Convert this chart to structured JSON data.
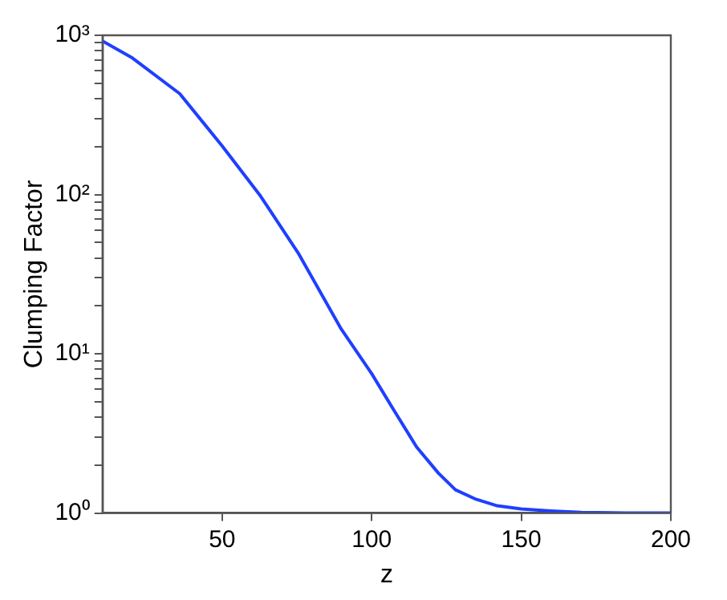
{
  "chart_data": {
    "type": "line",
    "xlabel": "z",
    "ylabel": "Clumping Factor",
    "log": "y",
    "grid": false,
    "legend": false,
    "marker": "none",
    "line_style": "solid",
    "x": [
      10,
      20,
      35.8,
      50,
      62.8,
      75.4,
      89.8,
      100,
      107.8,
      115,
      122.3,
      128,
      134.9,
      142,
      150,
      160,
      170,
      185,
      200
    ],
    "series": [
      {
        "color": "#1f3fff",
        "values": [
          920,
          720,
          430,
          202,
          98,
          43,
          14.3,
          7.5,
          4.3,
          2.6,
          1.78,
          1.4,
          1.22,
          1.11,
          1.06,
          1.03,
          1.01,
          1.0,
          1.0
        ]
      }
    ],
    "xlim": [
      10,
      200
    ],
    "xticks": [
      50,
      100,
      150,
      200
    ],
    "ylim": [
      1,
      1000
    ],
    "yticks": [
      {
        "value": 1,
        "label": "10⁰"
      },
      {
        "value": 2,
        "label": null
      },
      {
        "value": 3,
        "label": null
      },
      {
        "value": 4,
        "label": null
      },
      {
        "value": 5,
        "label": null
      },
      {
        "value": 6,
        "label": null
      },
      {
        "value": 7,
        "label": null
      },
      {
        "value": 8,
        "label": null
      },
      {
        "value": 9,
        "label": null
      },
      {
        "value": 10,
        "label": "10¹"
      },
      {
        "value": 20,
        "label": null
      },
      {
        "value": 30,
        "label": null
      },
      {
        "value": 40,
        "label": null
      },
      {
        "value": 50,
        "label": null
      },
      {
        "value": 60,
        "label": null
      },
      {
        "value": 70,
        "label": null
      },
      {
        "value": 80,
        "label": null
      },
      {
        "value": 90,
        "label": null
      },
      {
        "value": 100,
        "label": "10²"
      },
      {
        "value": 200,
        "label": null
      },
      {
        "value": 300,
        "label": null
      },
      {
        "value": 400,
        "label": null
      },
      {
        "value": 500,
        "label": null
      },
      {
        "value": 600,
        "label": null
      },
      {
        "value": 700,
        "label": null
      },
      {
        "value": 800,
        "label": null
      },
      {
        "value": 900,
        "label": null
      },
      {
        "value": 1000,
        "label": "10³"
      }
    ]
  }
}
